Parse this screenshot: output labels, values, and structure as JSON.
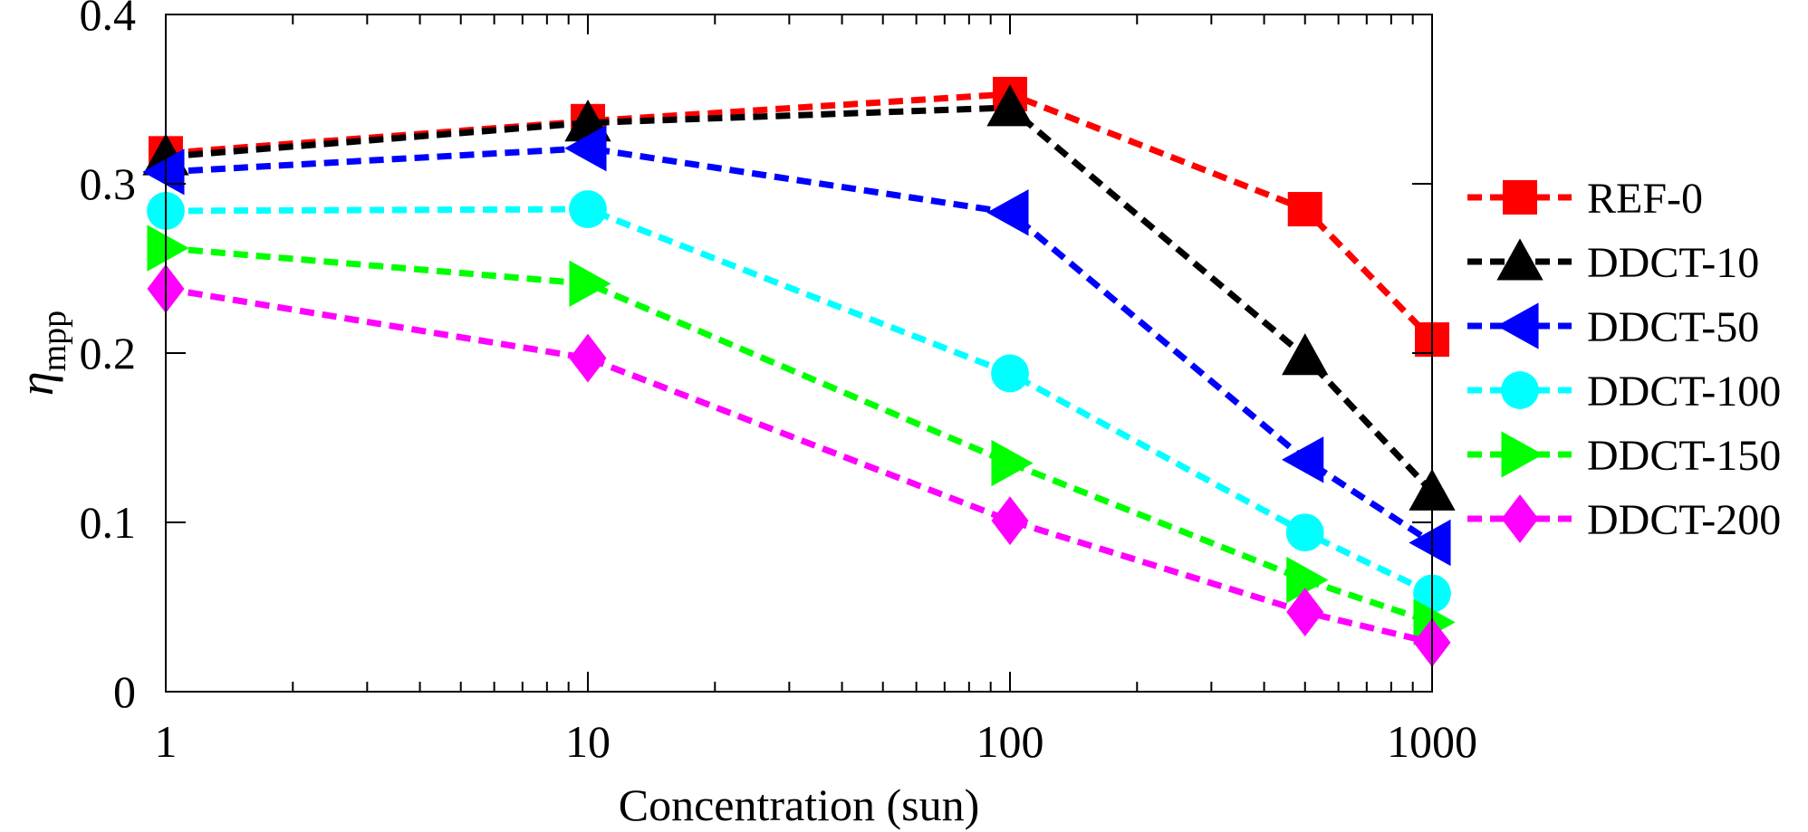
{
  "chart_data": {
    "type": "line",
    "title": "",
    "xlabel": "Concentration (sun)",
    "ylabel": {
      "symbol": "η",
      "subscript": "mpp"
    },
    "x_scale": "log",
    "xlim": [
      1,
      1000
    ],
    "ylim": [
      0,
      0.4
    ],
    "x_ticks": [
      1,
      10,
      100,
      1000
    ],
    "x_tick_labels": [
      "1",
      "10",
      "100",
      "1000"
    ],
    "y_ticks": [
      0,
      0.1,
      0.2,
      0.3,
      0.4
    ],
    "y_tick_labels": [
      "0",
      "0.1",
      "0.2",
      "0.3",
      "0.4"
    ],
    "grid": false,
    "legend_position": "right-outside",
    "x": [
      1,
      10,
      100,
      500,
      1000
    ],
    "series": [
      {
        "name": "REF-0",
        "color": "#ff0000",
        "marker": "square",
        "values": [
          0.318,
          0.337,
          0.353,
          0.285,
          0.208
        ]
      },
      {
        "name": "DDCT-10",
        "color": "#000000",
        "marker": "triangle-up",
        "values": [
          0.316,
          0.336,
          0.345,
          0.198,
          0.118
        ]
      },
      {
        "name": "DDCT-50",
        "color": "#0000ff",
        "marker": "triangle-left",
        "values": [
          0.307,
          0.321,
          0.283,
          0.137,
          0.088
        ]
      },
      {
        "name": "DDCT-100",
        "color": "#00ffff",
        "marker": "circle",
        "values": [
          0.284,
          0.285,
          0.188,
          0.094,
          0.058
        ]
      },
      {
        "name": "DDCT-150",
        "color": "#00ff00",
        "marker": "triangle-right",
        "values": [
          0.262,
          0.241,
          0.135,
          0.066,
          0.041
        ]
      },
      {
        "name": "DDCT-200",
        "color": "#ff00ff",
        "marker": "diamond",
        "values": [
          0.238,
          0.197,
          0.101,
          0.047,
          0.029
        ]
      }
    ]
  }
}
